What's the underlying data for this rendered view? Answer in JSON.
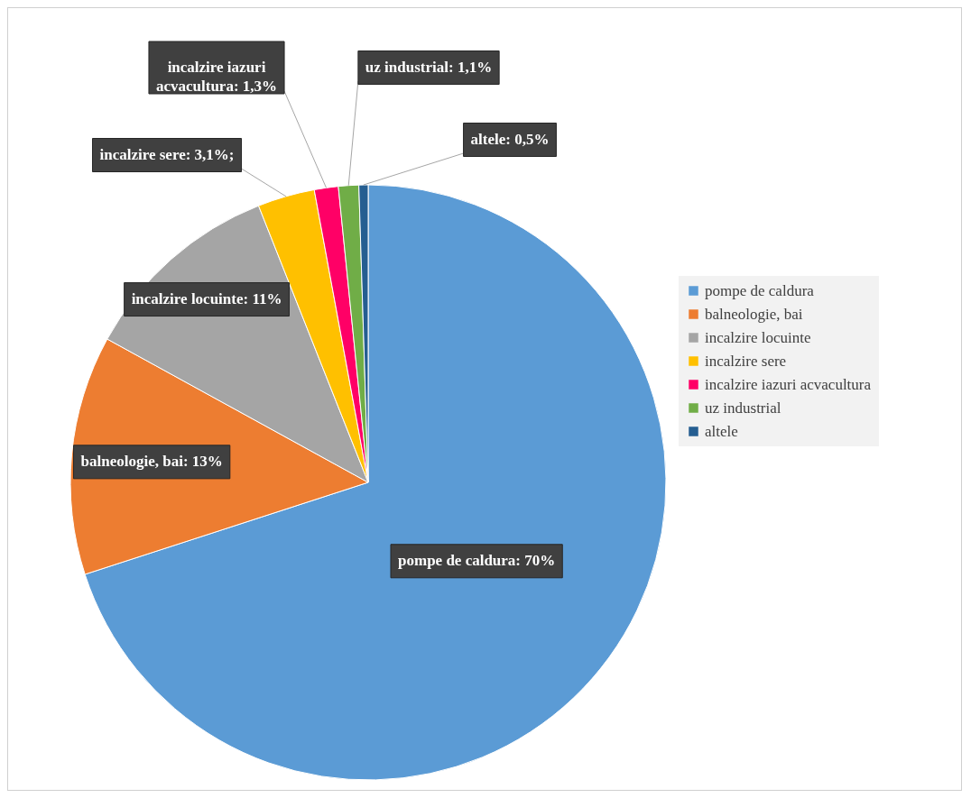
{
  "chart_data": {
    "type": "pie",
    "categories": [
      "pompe de caldura",
      "balneologie, bai",
      "incalzire locuinte",
      "incalzire sere",
      "incalzire iazuri acvacultura",
      "uz industrial",
      "altele"
    ],
    "values": [
      70,
      13,
      11,
      3.1,
      1.3,
      1.1,
      0.5
    ],
    "colors": [
      "#5b9bd5",
      "#ed7d31",
      "#a5a5a5",
      "#ffc000",
      "#ff0066",
      "#70ad47",
      "#255e91"
    ],
    "value_labels": [
      "pompe de caldura: 70%",
      "balneologie, bai: 13%",
      "incalzire locuinte: 11%",
      "incalzire sere: 3,1%;",
      "incalzire iazuri acvacultura: 1,3%",
      "uz industrial: 1,1%",
      "altele: 0,5%"
    ],
    "legend": "right"
  }
}
